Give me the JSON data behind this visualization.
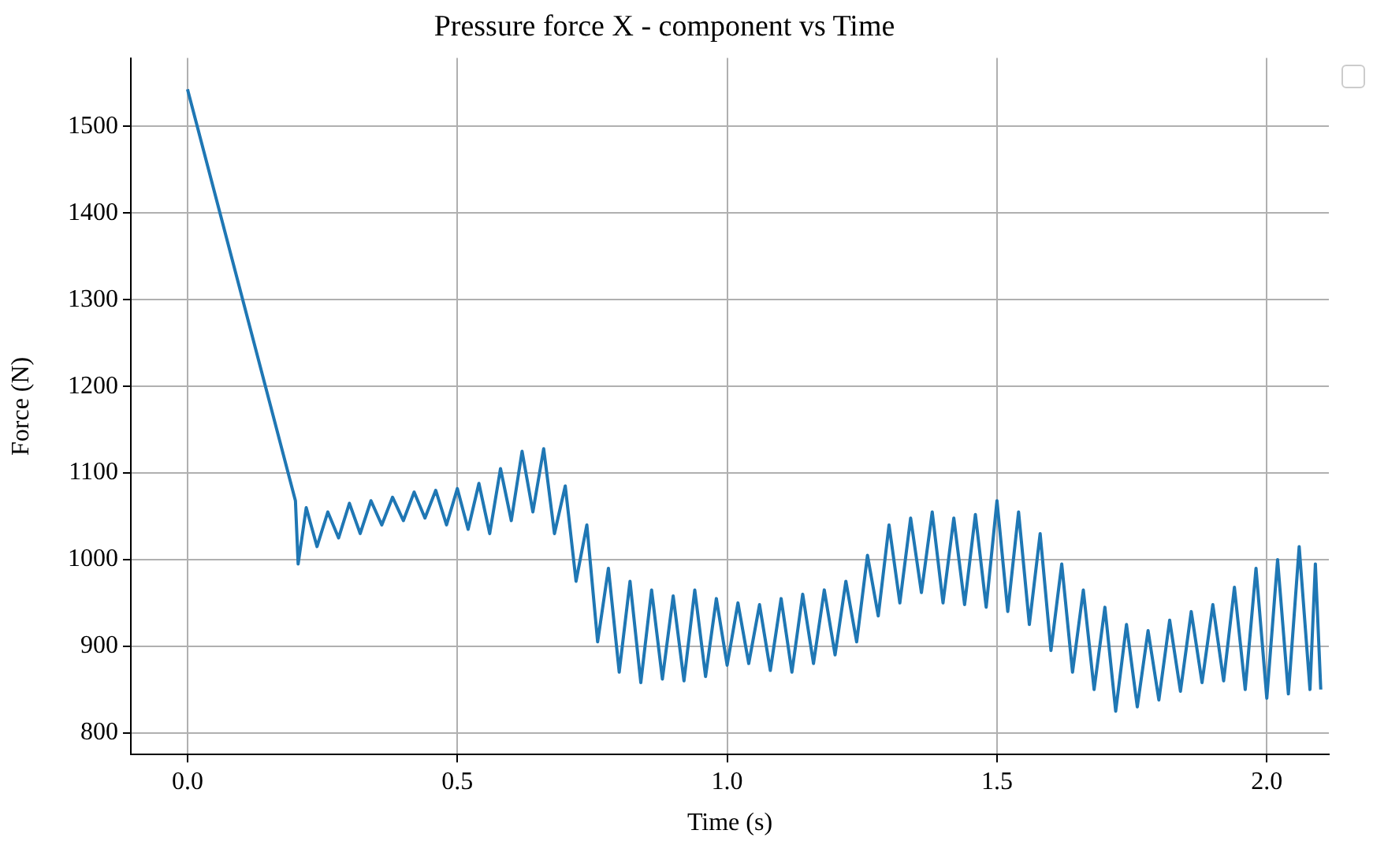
{
  "chart_data": {
    "type": "line",
    "title": "Pressure force X - component vs Time",
    "xlabel": "Time (s)",
    "ylabel": "Force (N)",
    "grid": true,
    "xlim": [
      -0.105,
      2.115
    ],
    "ylim": [
      775,
      1579
    ],
    "xticks": [
      {
        "value": 0,
        "label": "0.0"
      },
      0.5,
      {
        "value": 1,
        "label": "1.0"
      },
      1.5,
      {
        "value": 2,
        "label": "2.0"
      }
    ],
    "yticks": [
      800,
      900,
      1000,
      1100,
      1200,
      1300,
      1400,
      1500
    ],
    "series": [
      {
        "color": "#1f77b4",
        "x": [
          0,
          0.2,
          0.205,
          0.22,
          0.24,
          0.26,
          0.28,
          0.3,
          0.32,
          0.34,
          0.36,
          0.38,
          0.4,
          0.42,
          0.44,
          0.46,
          0.48,
          0.5,
          0.52,
          0.54,
          0.56,
          0.58,
          0.6,
          0.62,
          0.64,
          0.66,
          0.68,
          0.7,
          0.72,
          0.74,
          0.76,
          0.78,
          0.8,
          0.82,
          0.84,
          0.86,
          0.88,
          0.9,
          0.92,
          0.94,
          0.96,
          0.98,
          1.0,
          1.02,
          1.04,
          1.06,
          1.08,
          1.1,
          1.12,
          1.14,
          1.16,
          1.18,
          1.2,
          1.22,
          1.24,
          1.26,
          1.28,
          1.3,
          1.32,
          1.34,
          1.36,
          1.38,
          1.4,
          1.42,
          1.44,
          1.46,
          1.48,
          1.5,
          1.52,
          1.54,
          1.56,
          1.58,
          1.6,
          1.62,
          1.64,
          1.66,
          1.68,
          1.7,
          1.72,
          1.74,
          1.76,
          1.78,
          1.8,
          1.82,
          1.84,
          1.86,
          1.88,
          1.9,
          1.92,
          1.94,
          1.96,
          1.98,
          2.0,
          2.02,
          2.04,
          2.06,
          2.08,
          2.09,
          2.1
        ],
        "values": [
          1543,
          1068,
          995,
          1060,
          1015,
          1055,
          1025,
          1065,
          1030,
          1068,
          1040,
          1072,
          1045,
          1078,
          1048,
          1080,
          1040,
          1082,
          1035,
          1088,
          1030,
          1105,
          1045,
          1125,
          1055,
          1128,
          1030,
          1085,
          975,
          1040,
          905,
          990,
          870,
          975,
          858,
          965,
          862,
          958,
          860,
          965,
          865,
          955,
          878,
          950,
          880,
          948,
          872,
          955,
          870,
          960,
          880,
          965,
          890,
          975,
          905,
          1005,
          935,
          1040,
          950,
          1048,
          962,
          1055,
          950,
          1048,
          948,
          1052,
          945,
          1068,
          940,
          1055,
          925,
          1030,
          895,
          995,
          870,
          965,
          850,
          945,
          825,
          925,
          830,
          918,
          838,
          930,
          848,
          940,
          858,
          948,
          860,
          968,
          850,
          990,
          840,
          1000,
          845,
          1015,
          850,
          995,
          850
        ]
      }
    ]
  }
}
